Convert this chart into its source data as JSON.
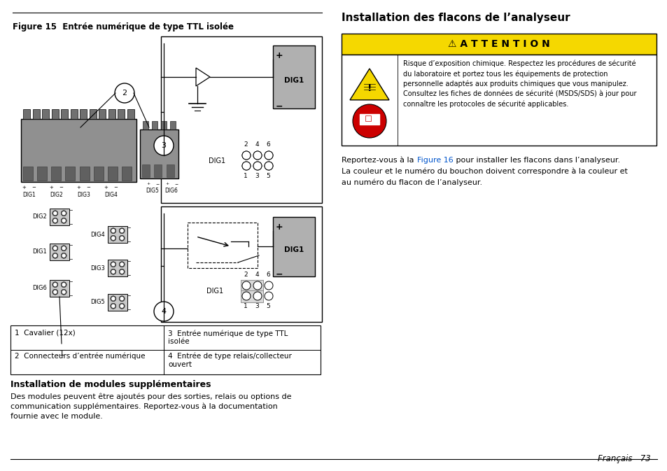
{
  "bg_color": "#ffffff",
  "fig_title": "Figure 15  Entrée numérique de type TTL isolée",
  "right_section_title": "Installation des flacons de l’analyseur",
  "attention_label": "⚠ A T T E N T I O N",
  "attention_bg": "#f5d800",
  "attention_text": "Risque d’exposition chimique. Respectez les procédures de sécurité\ndu laboratoire et portez tous les équipements de protection\npersonnelle adaptés aux produits chimiques que vous manipulez.\nConsultez les fiches de données de sécurité (MSDS/SDS) à jour pour\nconnaître les protocoles de sécurité applicables.",
  "figure16_link_color": "#0055cc",
  "table_items": [
    {
      "num": "1",
      "text": "Cavalier (12x)"
    },
    {
      "num": "2",
      "text": "Connecteurs d’entrée numérique"
    },
    {
      "num": "3",
      "text": "Entrée numérique de type TTL\nisolée"
    },
    {
      "num": "4",
      "text": "Entrée de type relais/collecteur\nouvert"
    }
  ],
  "section_title_modules": "Installation de modules supplémentaires",
  "body_text_modules": "Des modules peuvent être ajoutés pour des sorties, relais ou options de\ncommunication supplémentaires. Reportez-vous à la documentation\nfournie avec le module.",
  "footer_text": "Français   73"
}
